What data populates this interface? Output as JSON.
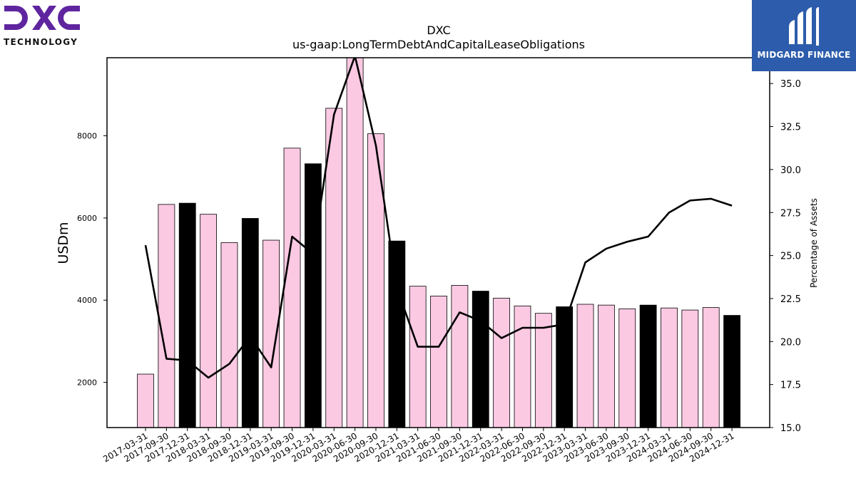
{
  "logos": {
    "left": {
      "wordmark": "DXC",
      "subtitle": "TECHNOLOGY",
      "color": "#5f259f"
    },
    "right": {
      "brand": "MIDGARD FINANCE",
      "background": "#2c5cab"
    }
  },
  "chart_data": {
    "type": "bar",
    "title": "DXC",
    "subtitle": "us-gaap:LongTermDebtAndCapitalLeaseObligations",
    "ylabel": "USDm",
    "y2label": "Percentage of Assets",
    "ylim": [
      900,
      9900
    ],
    "y2lim": [
      15.0,
      36.5
    ],
    "yticks": [
      2000,
      4000,
      6000,
      8000
    ],
    "y2ticks": [
      15.0,
      17.5,
      20.0,
      22.5,
      25.0,
      27.5,
      30.0,
      32.5,
      35.0
    ],
    "categories": [
      "2017-03-31",
      "2017-09-30",
      "2017-12-31",
      "2018-03-31",
      "2018-09-30",
      "2018-12-31",
      "2019-03-31",
      "2019-09-30",
      "2019-12-31",
      "2020-03-31",
      "2020-06-30",
      "2020-09-30",
      "2020-12-31",
      "2021-03-31",
      "2021-06-30",
      "2021-09-30",
      "2021-12-31",
      "2022-03-31",
      "2022-06-30",
      "2022-09-30",
      "2022-12-31",
      "2023-03-31",
      "2023-06-30",
      "2023-09-30",
      "2023-12-31",
      "2024-03-31",
      "2024-06-30",
      "2024-09-30",
      "2024-12-31"
    ],
    "series": [
      {
        "kind": "bar",
        "values": [
          2200,
          6330,
          6360,
          6090,
          5400,
          5990,
          5460,
          7700,
          7320,
          8670,
          9930,
          8050,
          5440,
          4340,
          4100,
          4360,
          4220,
          4050,
          3860,
          3680,
          3840,
          3900,
          3880,
          3790,
          3880,
          3810,
          3760,
          3820,
          3630
        ],
        "highlight": [
          false,
          false,
          true,
          false,
          false,
          true,
          false,
          false,
          true,
          false,
          false,
          false,
          true,
          false,
          false,
          false,
          true,
          false,
          false,
          false,
          true,
          false,
          false,
          false,
          true,
          false,
          false,
          false,
          true
        ]
      },
      {
        "kind": "line",
        "axis": "right",
        "values": [
          25.6,
          19.0,
          18.9,
          17.9,
          18.7,
          20.3,
          18.5,
          26.1,
          25.1,
          33.2,
          36.6,
          31.4,
          23.1,
          19.7,
          19.7,
          21.7,
          21.2,
          20.2,
          20.8,
          20.8,
          21.0,
          24.6,
          25.4,
          25.8,
          26.1,
          27.5,
          28.2,
          28.3,
          27.9
        ]
      }
    ],
    "colors": {
      "bar": "#fcc9e3",
      "bar_highlight": "#000000",
      "line": "#000000"
    }
  }
}
